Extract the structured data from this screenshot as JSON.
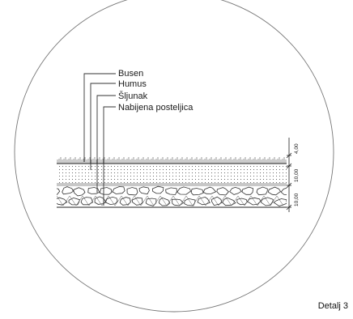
{
  "labels": {
    "busen": "Busen",
    "humus": "Humus",
    "sljunak": "Šljunak",
    "posteljica": "Nabijena posteljica"
  },
  "dimensions": {
    "top": "4,00",
    "middle": "10,00",
    "bottom": "10,00"
  },
  "caption": "Detalj 3"
}
